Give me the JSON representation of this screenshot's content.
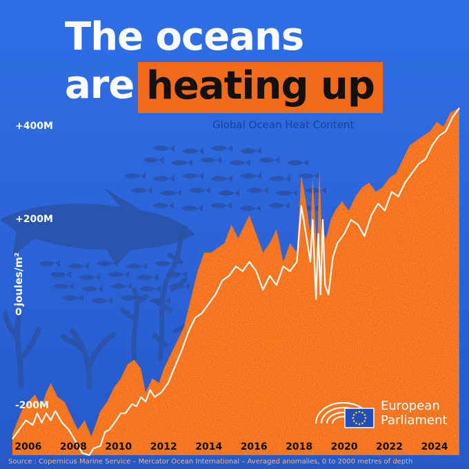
{
  "colors": {
    "sky": "#2f6fe6",
    "ocean_silhouette": "#2a53a8",
    "area_fill": "#f56a12",
    "area_texture": "#ff9a3c",
    "line": "#ffffff",
    "highlight": "#f26a1b",
    "eu_flag": "#1f4fbf",
    "eu_star": "#ffd617"
  },
  "header": {
    "title_line_1": "The oceans",
    "title_line_2_prefix": "are",
    "title_line_2_highlight": "heating up",
    "subtitle": "Global Ocean Heat Content"
  },
  "logo": {
    "line_1": "European",
    "line_2": "Parliament"
  },
  "source": "Source : Copernicus Marine Service – Mercator Ocean International – Averaged anomalies, 0 to 2000 metres of depth",
  "decorations": {
    "background_icons": [
      "shark-silhouette",
      "fish-school",
      "seaweed",
      "coral"
    ]
  },
  "chart_data": {
    "type": "area",
    "title": "Global Ocean Heat Content",
    "ylabel": "joules/m²",
    "xlabel": "",
    "ylim": [
      -290,
      420
    ],
    "xlim": [
      2005.3,
      2025.1
    ],
    "y_ticks": [
      {
        "value": 400,
        "label": "+400M"
      },
      {
        "value": 200,
        "label": "+200M"
      },
      {
        "value": 0,
        "label": "0"
      },
      {
        "value": -200,
        "label": "-200M"
      }
    ],
    "x_ticks": [
      "2006",
      "2008",
      "2010",
      "2012",
      "2014",
      "2016",
      "2018",
      "2020",
      "2022",
      "2024"
    ],
    "grid": false,
    "legend": "none",
    "series": [
      {
        "type": "area",
        "x": [
          2005.3,
          2005.7,
          2006.0,
          2006.3,
          2006.6,
          2006.8,
          2007.0,
          2007.3,
          2007.6,
          2007.9,
          2008.2,
          2008.5,
          2008.8,
          2009.2,
          2009.5,
          2009.8,
          2010.1,
          2010.4,
          2010.7,
          2011.0,
          2011.2,
          2011.5,
          2011.8,
          2012.0,
          2012.3,
          2012.6,
          2012.9,
          2013.2,
          2013.5,
          2013.8,
          2014.1,
          2014.4,
          2014.7,
          2015.0,
          2015.3,
          2015.5,
          2015.8,
          2016.1,
          2016.4,
          2016.7,
          2017.0,
          2017.3,
          2017.6,
          2017.9,
          2018.1,
          2018.3,
          2018.5,
          2018.6,
          2018.8,
          2018.9,
          2019.0,
          2019.2,
          2019.4,
          2019.6,
          2019.9,
          2020.2,
          2020.5,
          2020.8,
          2021.1,
          2021.4,
          2021.7,
          2022.0,
          2022.3,
          2022.6,
          2022.9,
          2023.2,
          2023.5,
          2023.8,
          2024.1,
          2024.4,
          2024.7,
          2025.1
        ],
        "values": [
          -260,
          -210,
          -190,
          -175,
          -200,
          -170,
          -150,
          -180,
          -190,
          -220,
          -250,
          -230,
          -265,
          -210,
          -190,
          -160,
          -140,
          -110,
          -100,
          -120,
          -170,
          -140,
          -150,
          -120,
          -90,
          -60,
          -30,
          30,
          90,
          130,
          130,
          140,
          150,
          190,
          160,
          180,
          210,
          170,
          130,
          150,
          180,
          110,
          150,
          130,
          295,
          240,
          170,
          290,
          130,
          310,
          180,
          160,
          200,
          220,
          240,
          220,
          250,
          270,
          280,
          260,
          270,
          290,
          300,
          330,
          360,
          370,
          380,
          390,
          410,
          400,
          430,
          440
        ]
      },
      {
        "type": "line",
        "x": [
          2005.3,
          2005.6,
          2005.9,
          2006.2,
          2006.4,
          2006.6,
          2006.8,
          2007.0,
          2007.2,
          2007.5,
          2007.8,
          2008.1,
          2008.4,
          2008.7,
          2008.9,
          2009.2,
          2009.4,
          2009.6,
          2009.9,
          2010.1,
          2010.3,
          2010.6,
          2010.8,
          2011.0,
          2011.2,
          2011.4,
          2011.6,
          2011.9,
          2012.2,
          2012.5,
          2012.8,
          2013.1,
          2013.4,
          2013.7,
          2014.0,
          2014.3,
          2014.6,
          2014.9,
          2015.2,
          2015.5,
          2015.8,
          2016.1,
          2016.4,
          2016.7,
          2017.0,
          2017.3,
          2017.6,
          2017.9,
          2018.1,
          2018.3,
          2018.5,
          2018.6,
          2018.75,
          2018.85,
          2018.95,
          2019.05,
          2019.15,
          2019.3,
          2019.5,
          2019.7,
          2020.0,
          2020.3,
          2020.6,
          2020.9,
          2021.2,
          2021.5,
          2021.8,
          2022.1,
          2022.4,
          2022.7,
          2023.0,
          2023.3,
          2023.6,
          2023.9,
          2024.2,
          2024.5,
          2024.8,
          2025.1
        ],
        "values": [
          -270,
          -250,
          -230,
          -240,
          -215,
          -235,
          -215,
          -230,
          -210,
          -235,
          -250,
          -275,
          -300,
          -315,
          -290,
          -285,
          -255,
          -250,
          -230,
          -215,
          -215,
          -195,
          -200,
          -180,
          -190,
          -165,
          -180,
          -170,
          -150,
          -115,
          -80,
          -40,
          -10,
          0,
          20,
          40,
          70,
          80,
          100,
          90,
          110,
          90,
          50,
          80,
          60,
          100,
          90,
          110,
          230,
          170,
          110,
          200,
          30,
          170,
          40,
          200,
          60,
          40,
          120,
          150,
          170,
          200,
          190,
          165,
          210,
          235,
          220,
          260,
          250,
          280,
          300,
          320,
          330,
          360,
          380,
          390,
          420,
          440
        ]
      }
    ]
  }
}
